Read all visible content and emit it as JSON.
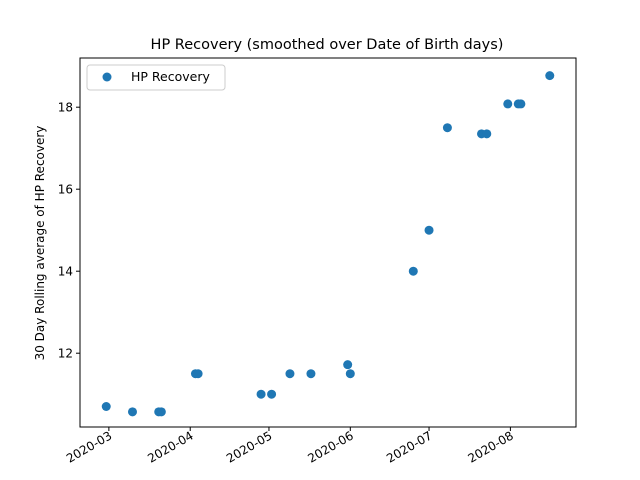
{
  "chart_data": {
    "type": "scatter",
    "title": "HP Recovery (smoothed over Date of Birth days)",
    "xlabel": "",
    "ylabel": "30 Day Rolling average of HP Recovery",
    "x_axis_type": "date",
    "xlim": [
      "2020-02-19",
      "2020-08-26"
    ],
    "ylim": [
      10.2,
      19.2
    ],
    "x_ticks": [
      "2020-03",
      "2020-04",
      "2020-05",
      "2020-06",
      "2020-07",
      "2020-08"
    ],
    "y_ticks": [
      12,
      14,
      16,
      18
    ],
    "grid": false,
    "legend_position": "top-left",
    "series": [
      {
        "name": "HP Recovery",
        "color": "#1f77b4",
        "marker": "circle",
        "points": [
          {
            "x": "2020-02-29",
            "y": 10.7
          },
          {
            "x": "2020-03-10",
            "y": 10.57
          },
          {
            "x": "2020-03-20",
            "y": 10.57
          },
          {
            "x": "2020-03-21",
            "y": 10.57
          },
          {
            "x": "2020-04-03",
            "y": 11.5
          },
          {
            "x": "2020-04-04",
            "y": 11.5
          },
          {
            "x": "2020-04-28",
            "y": 11.0
          },
          {
            "x": "2020-05-02",
            "y": 11.0
          },
          {
            "x": "2020-05-09",
            "y": 11.5
          },
          {
            "x": "2020-05-17",
            "y": 11.5
          },
          {
            "x": "2020-05-31",
            "y": 11.72
          },
          {
            "x": "2020-06-01",
            "y": 11.5
          },
          {
            "x": "2020-06-25",
            "y": 14.0
          },
          {
            "x": "2020-07-01",
            "y": 15.0
          },
          {
            "x": "2020-07-08",
            "y": 17.5
          },
          {
            "x": "2020-07-21",
            "y": 17.35
          },
          {
            "x": "2020-07-23",
            "y": 17.35
          },
          {
            "x": "2020-07-31",
            "y": 18.08
          },
          {
            "x": "2020-08-04",
            "y": 18.08
          },
          {
            "x": "2020-08-05",
            "y": 18.08
          },
          {
            "x": "2020-08-16",
            "y": 18.77
          }
        ]
      }
    ]
  }
}
